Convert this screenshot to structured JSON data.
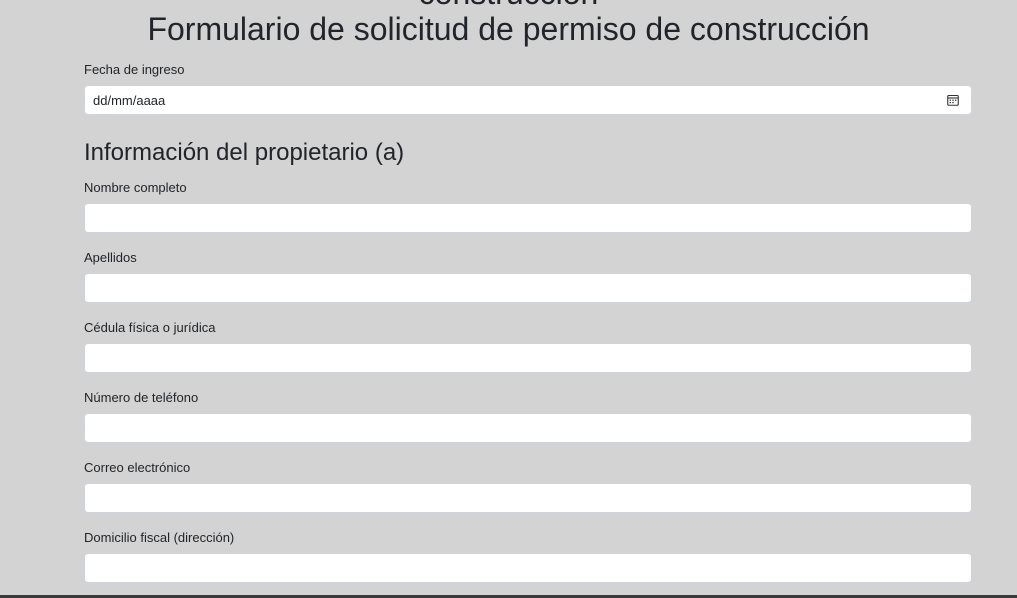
{
  "header": {
    "clipped_title_fragment": "construcción",
    "title": "Formulario de solicitud de permiso de construcción"
  },
  "form": {
    "entry_date": {
      "label": "Fecha de ingreso",
      "placeholder": "dd/mm/aaaa",
      "icon": "calendar-icon"
    },
    "owner_section": {
      "title": "Información del propietario (a)",
      "fields": [
        {
          "label": "Nombre completo",
          "value": ""
        },
        {
          "label": "Apellidos",
          "value": ""
        },
        {
          "label": "Cédula física o jurídica",
          "value": ""
        },
        {
          "label": "Número de teléfono",
          "value": ""
        },
        {
          "label": "Correo electrónico",
          "value": ""
        },
        {
          "label": "Domicilio fiscal (dirección)",
          "value": ""
        }
      ]
    }
  },
  "colors": {
    "background": "#d3d3d3",
    "input_background": "#ffffff",
    "input_border": "#ced4da",
    "text": "#212529"
  }
}
